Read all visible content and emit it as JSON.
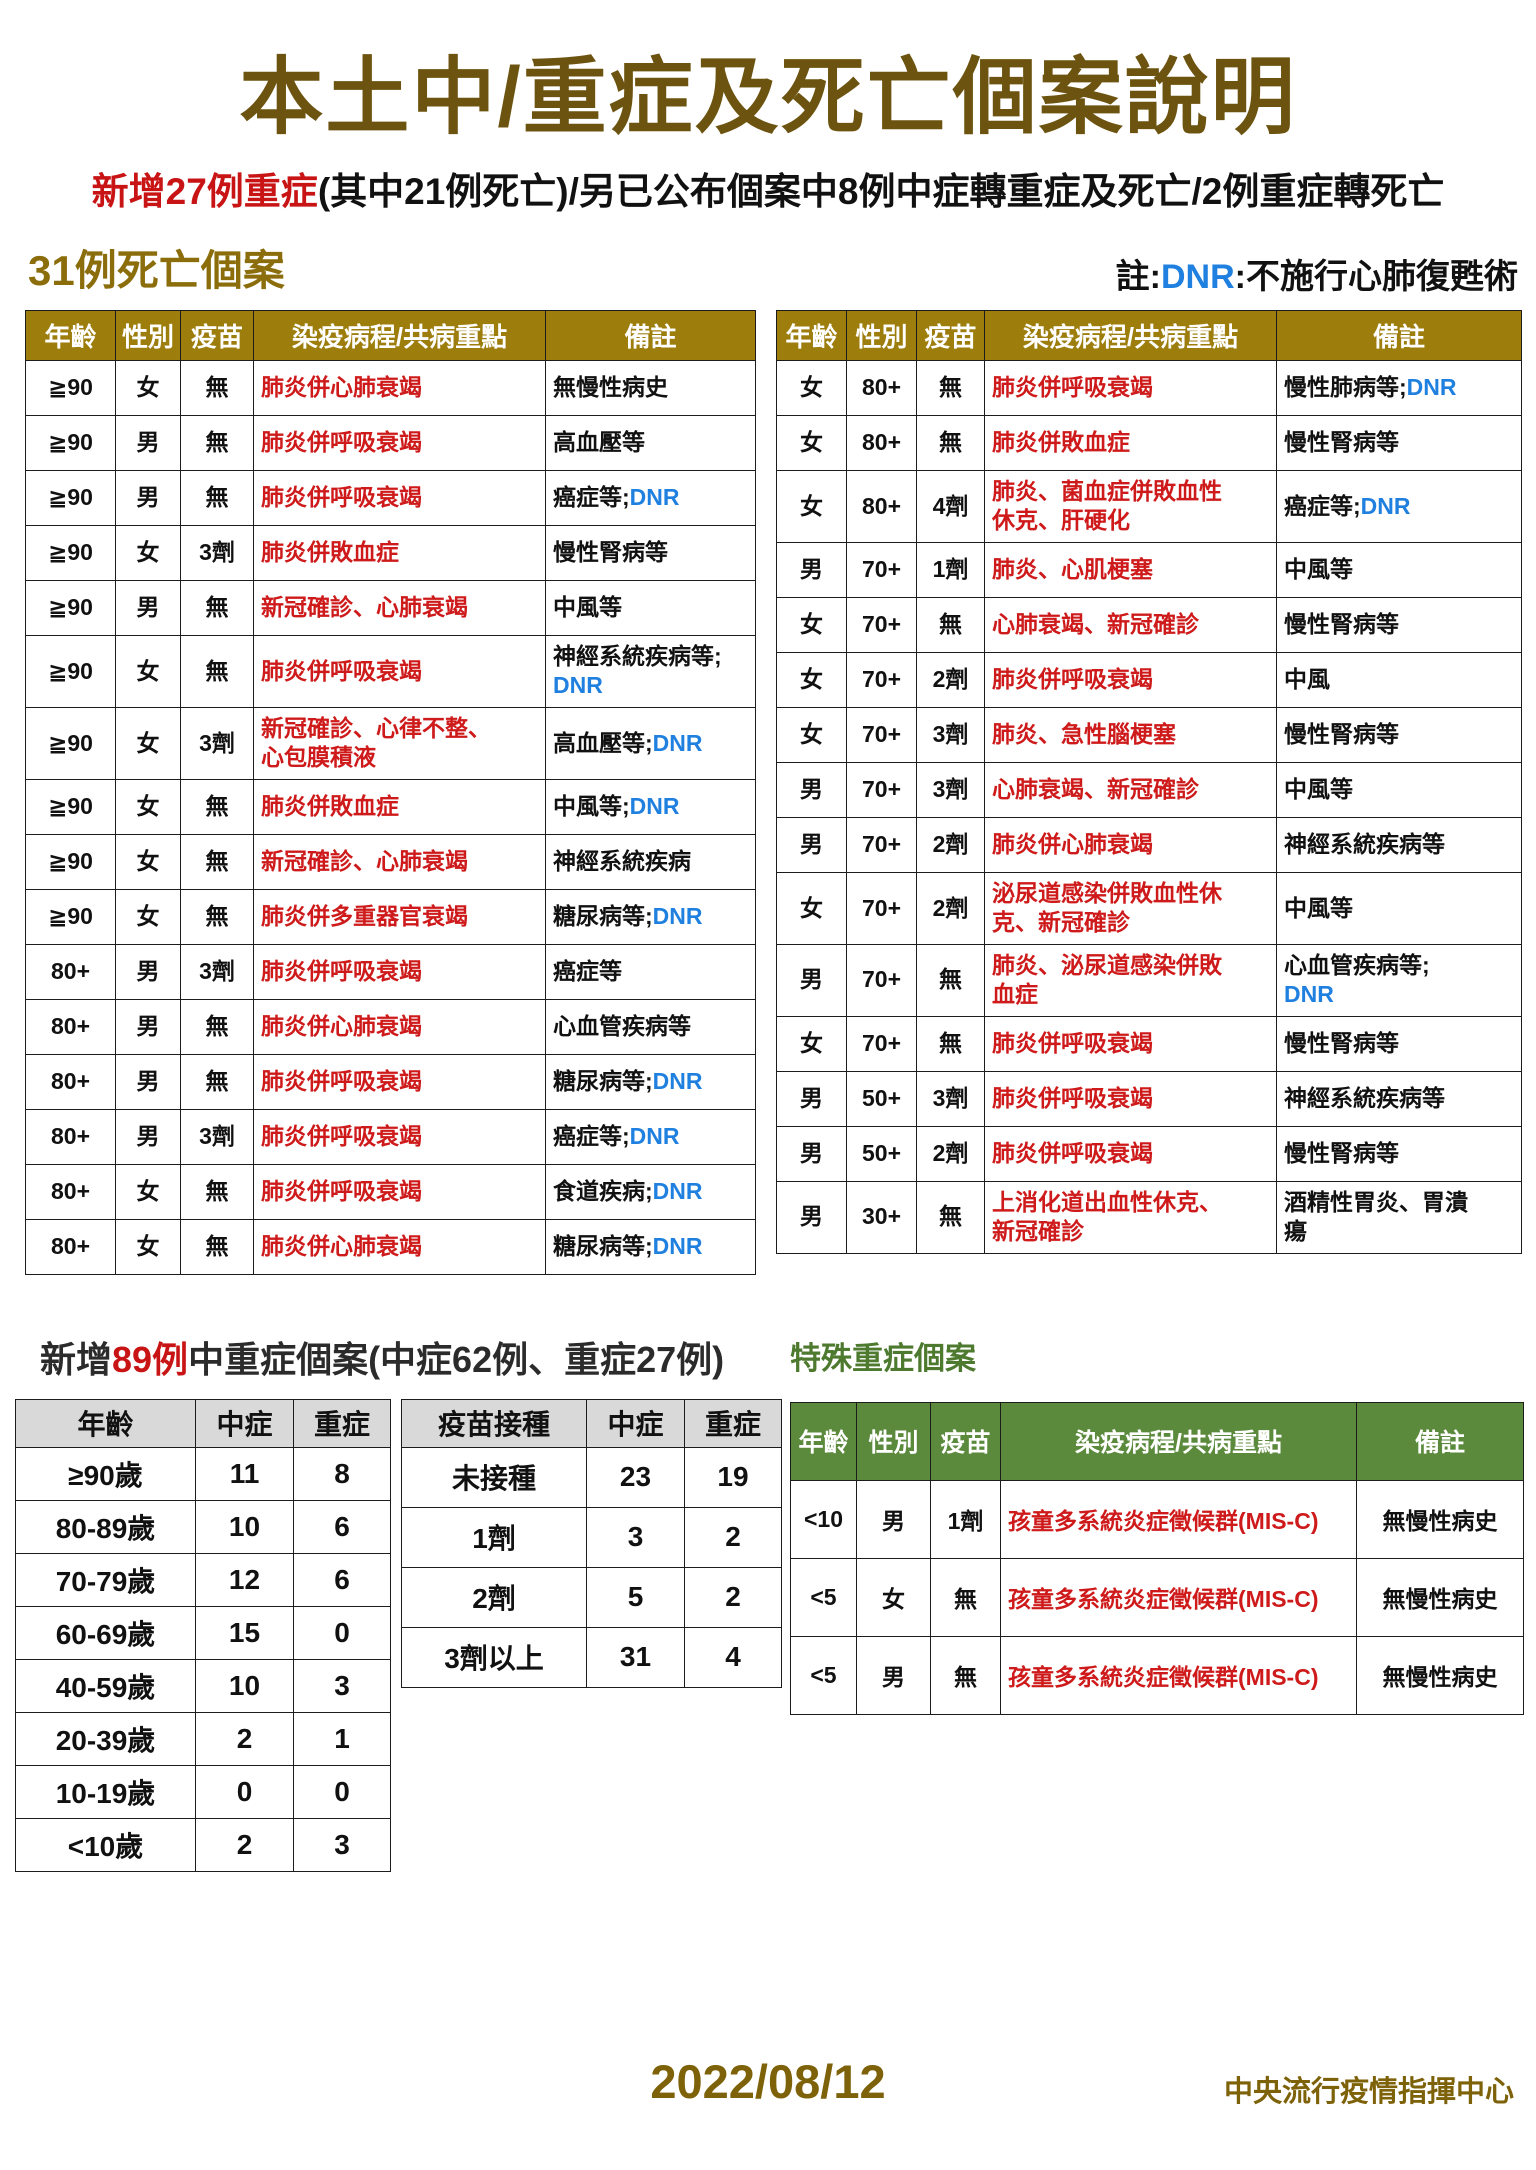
{
  "page": {
    "title": "本土中/重症及死亡個案說明",
    "subtitle": {
      "red": "新增27例重症",
      "rest": "(其中21例死亡)/另已公布個案中8例中症轉重症及死亡/2例重症轉死亡"
    },
    "footer": {
      "date": "2022/08/12",
      "org": "中央流行疫情指揮中心"
    }
  },
  "death_section": {
    "heading": "31例死亡個案",
    "note": {
      "prefix": "註:",
      "dnr": "DNR",
      "suffix": ":不施行心肺復甦術"
    }
  },
  "death_headers": [
    "年齡",
    "性別",
    "疫苗",
    "染疫病程/共病重點",
    "備註"
  ],
  "death_left_rows": [
    [
      [
        [
          "≧90",
          ""
        ]
      ],
      [
        [
          "女",
          ""
        ]
      ],
      [
        [
          "無",
          ""
        ]
      ],
      [
        [
          "肺炎併心肺衰竭",
          "red"
        ]
      ],
      [
        [
          "無慢性病史",
          ""
        ]
      ]
    ],
    [
      [
        [
          "≧90",
          ""
        ]
      ],
      [
        [
          "男",
          ""
        ]
      ],
      [
        [
          "無",
          ""
        ]
      ],
      [
        [
          "肺炎併呼吸衰竭",
          "red"
        ]
      ],
      [
        [
          "高血壓等",
          ""
        ]
      ]
    ],
    [
      [
        [
          "≧90",
          ""
        ]
      ],
      [
        [
          "男",
          ""
        ]
      ],
      [
        [
          "無",
          ""
        ]
      ],
      [
        [
          "肺炎併呼吸衰竭",
          "red"
        ]
      ],
      [
        [
          "癌症等;",
          ""
        ],
        [
          "DNR",
          "blue"
        ]
      ]
    ],
    [
      [
        [
          "≧90",
          ""
        ]
      ],
      [
        [
          "女",
          ""
        ]
      ],
      [
        [
          "3劑",
          ""
        ]
      ],
      [
        [
          "肺炎併敗血症",
          "red"
        ]
      ],
      [
        [
          "慢性腎病等",
          ""
        ]
      ]
    ],
    [
      [
        [
          "≧90",
          ""
        ]
      ],
      [
        [
          "男",
          ""
        ]
      ],
      [
        [
          "無",
          ""
        ]
      ],
      [
        [
          "新冠確診、心肺衰竭",
          "red"
        ]
      ],
      [
        [
          "中風等",
          ""
        ]
      ]
    ],
    [
      [
        [
          "≧90",
          ""
        ]
      ],
      [
        [
          "女",
          ""
        ]
      ],
      [
        [
          "無",
          ""
        ]
      ],
      [
        [
          "肺炎併呼吸衰竭",
          "red"
        ]
      ],
      [
        [
          "神經系統疾病等;\n",
          ""
        ],
        [
          "DNR",
          "blue"
        ]
      ]
    ],
    [
      [
        [
          "≧90",
          ""
        ]
      ],
      [
        [
          "女",
          ""
        ]
      ],
      [
        [
          "3劑",
          ""
        ]
      ],
      [
        [
          "新冠確診、心律不整、\n心包膜積液",
          "red"
        ]
      ],
      [
        [
          "高血壓等;",
          ""
        ],
        [
          "DNR",
          "blue"
        ]
      ]
    ],
    [
      [
        [
          "≧90",
          ""
        ]
      ],
      [
        [
          "女",
          ""
        ]
      ],
      [
        [
          "無",
          ""
        ]
      ],
      [
        [
          "肺炎併敗血症",
          "red"
        ]
      ],
      [
        [
          "中風等;",
          ""
        ],
        [
          "DNR",
          "blue"
        ]
      ]
    ],
    [
      [
        [
          "≧90",
          ""
        ]
      ],
      [
        [
          "女",
          ""
        ]
      ],
      [
        [
          "無",
          ""
        ]
      ],
      [
        [
          "新冠確診、心肺衰竭",
          "red"
        ]
      ],
      [
        [
          "神經系統疾病",
          ""
        ]
      ]
    ],
    [
      [
        [
          "≧90",
          ""
        ]
      ],
      [
        [
          "女",
          ""
        ]
      ],
      [
        [
          "無",
          ""
        ]
      ],
      [
        [
          "肺炎併多重器官衰竭",
          "red"
        ]
      ],
      [
        [
          "糖尿病等;",
          ""
        ],
        [
          "DNR",
          "blue"
        ]
      ]
    ],
    [
      [
        [
          "80+",
          ""
        ]
      ],
      [
        [
          "男",
          ""
        ]
      ],
      [
        [
          "3劑",
          ""
        ]
      ],
      [
        [
          "肺炎併呼吸衰竭",
          "red"
        ]
      ],
      [
        [
          "癌症等",
          ""
        ]
      ]
    ],
    [
      [
        [
          "80+",
          ""
        ]
      ],
      [
        [
          "男",
          ""
        ]
      ],
      [
        [
          "無",
          ""
        ]
      ],
      [
        [
          "肺炎併心肺衰竭",
          "red"
        ]
      ],
      [
        [
          "心血管疾病等",
          ""
        ]
      ]
    ],
    [
      [
        [
          "80+",
          ""
        ]
      ],
      [
        [
          "男",
          ""
        ]
      ],
      [
        [
          "無",
          ""
        ]
      ],
      [
        [
          "肺炎併呼吸衰竭",
          "red"
        ]
      ],
      [
        [
          "糖尿病等;",
          ""
        ],
        [
          "DNR",
          "blue"
        ]
      ]
    ],
    [
      [
        [
          "80+",
          ""
        ]
      ],
      [
        [
          "男",
          ""
        ]
      ],
      [
        [
          "3劑",
          ""
        ]
      ],
      [
        [
          "肺炎併呼吸衰竭",
          "red"
        ]
      ],
      [
        [
          "癌症等;",
          ""
        ],
        [
          "DNR",
          "blue"
        ]
      ]
    ],
    [
      [
        [
          "80+",
          ""
        ]
      ],
      [
        [
          "女",
          ""
        ]
      ],
      [
        [
          "無",
          ""
        ]
      ],
      [
        [
          "肺炎併呼吸衰竭",
          "red"
        ]
      ],
      [
        [
          "食道疾病;",
          ""
        ],
        [
          "DNR",
          "blue"
        ]
      ]
    ],
    [
      [
        [
          "80+",
          ""
        ]
      ],
      [
        [
          "女",
          ""
        ]
      ],
      [
        [
          "無",
          ""
        ]
      ],
      [
        [
          "肺炎併心肺衰竭",
          "red"
        ]
      ],
      [
        [
          "糖尿病等;",
          ""
        ],
        [
          "DNR",
          "blue"
        ]
      ]
    ]
  ],
  "death_right_rows": [
    [
      [
        [
          "女",
          ""
        ]
      ],
      [
        [
          "80+",
          ""
        ]
      ],
      [
        [
          "無",
          ""
        ]
      ],
      [
        [
          "肺炎併呼吸衰竭",
          "red"
        ]
      ],
      [
        [
          "慢性肺病等;",
          ""
        ],
        [
          "DNR",
          "blue"
        ]
      ]
    ],
    [
      [
        [
          "女",
          ""
        ]
      ],
      [
        [
          "80+",
          ""
        ]
      ],
      [
        [
          "無",
          ""
        ]
      ],
      [
        [
          "肺炎併敗血症",
          "red"
        ]
      ],
      [
        [
          "慢性腎病等",
          ""
        ]
      ]
    ],
    [
      [
        [
          "女",
          ""
        ]
      ],
      [
        [
          "80+",
          ""
        ]
      ],
      [
        [
          "4劑",
          ""
        ]
      ],
      [
        [
          "肺炎、菌血症併敗血性\n休克、肝硬化",
          "red"
        ]
      ],
      [
        [
          "癌症等;",
          ""
        ],
        [
          "DNR",
          "blue"
        ]
      ]
    ],
    [
      [
        [
          "男",
          ""
        ]
      ],
      [
        [
          "70+",
          ""
        ]
      ],
      [
        [
          "1劑",
          ""
        ]
      ],
      [
        [
          "肺炎、心肌梗塞",
          "red"
        ]
      ],
      [
        [
          "中風等",
          ""
        ]
      ]
    ],
    [
      [
        [
          "女",
          ""
        ]
      ],
      [
        [
          "70+",
          ""
        ]
      ],
      [
        [
          "無",
          ""
        ]
      ],
      [
        [
          "心肺衰竭、新冠確診",
          "red"
        ]
      ],
      [
        [
          "慢性腎病等",
          ""
        ]
      ]
    ],
    [
      [
        [
          "女",
          ""
        ]
      ],
      [
        [
          "70+",
          ""
        ]
      ],
      [
        [
          "2劑",
          ""
        ]
      ],
      [
        [
          "肺炎併呼吸衰竭",
          "red"
        ]
      ],
      [
        [
          "中風",
          ""
        ]
      ]
    ],
    [
      [
        [
          "女",
          ""
        ]
      ],
      [
        [
          "70+",
          ""
        ]
      ],
      [
        [
          "3劑",
          ""
        ]
      ],
      [
        [
          "肺炎、急性腦梗塞",
          "red"
        ]
      ],
      [
        [
          "慢性腎病等",
          ""
        ]
      ]
    ],
    [
      [
        [
          "男",
          ""
        ]
      ],
      [
        [
          "70+",
          ""
        ]
      ],
      [
        [
          "3劑",
          ""
        ]
      ],
      [
        [
          "心肺衰竭、新冠確診",
          "red"
        ]
      ],
      [
        [
          "中風等",
          ""
        ]
      ]
    ],
    [
      [
        [
          "男",
          ""
        ]
      ],
      [
        [
          "70+",
          ""
        ]
      ],
      [
        [
          "2劑",
          ""
        ]
      ],
      [
        [
          "肺炎併心肺衰竭",
          "red"
        ]
      ],
      [
        [
          "神經系統疾病等",
          ""
        ]
      ]
    ],
    [
      [
        [
          "女",
          ""
        ]
      ],
      [
        [
          "70+",
          ""
        ]
      ],
      [
        [
          "2劑",
          ""
        ]
      ],
      [
        [
          "泌尿道感染併敗血性休\n克、新冠確診",
          "red"
        ]
      ],
      [
        [
          "中風等",
          ""
        ]
      ]
    ],
    [
      [
        [
          "男",
          ""
        ]
      ],
      [
        [
          "70+",
          ""
        ]
      ],
      [
        [
          "無",
          ""
        ]
      ],
      [
        [
          "肺炎、泌尿道感染併敗\n血症",
          "red"
        ]
      ],
      [
        [
          "心血管疾病等;\n",
          ""
        ],
        [
          "DNR",
          "blue"
        ]
      ]
    ],
    [
      [
        [
          "女",
          ""
        ]
      ],
      [
        [
          "70+",
          ""
        ]
      ],
      [
        [
          "無",
          ""
        ]
      ],
      [
        [
          "肺炎併呼吸衰竭",
          "red"
        ]
      ],
      [
        [
          "慢性腎病等",
          ""
        ]
      ]
    ],
    [
      [
        [
          "男",
          ""
        ]
      ],
      [
        [
          "50+",
          ""
        ]
      ],
      [
        [
          "3劑",
          ""
        ]
      ],
      [
        [
          "肺炎併呼吸衰竭",
          "red"
        ]
      ],
      [
        [
          "神經系統疾病等",
          ""
        ]
      ]
    ],
    [
      [
        [
          "男",
          ""
        ]
      ],
      [
        [
          "50+",
          ""
        ]
      ],
      [
        [
          "2劑",
          ""
        ]
      ],
      [
        [
          "肺炎併呼吸衰竭",
          "red"
        ]
      ],
      [
        [
          "慢性腎病等",
          ""
        ]
      ]
    ],
    [
      [
        [
          "男",
          ""
        ]
      ],
      [
        [
          "30+",
          ""
        ]
      ],
      [
        [
          "無",
          ""
        ]
      ],
      [
        [
          "上消化道出血性休克、\n新冠確診",
          "red"
        ]
      ],
      [
        [
          "酒精性胃炎、胃潰\n瘍",
          ""
        ]
      ]
    ]
  ],
  "moderate_section": {
    "heading_prefix": "新增",
    "heading_red": "89例",
    "heading_rest": "中重症個案(中症62例、重症27例)",
    "special_heading": "特殊重症個案"
  },
  "age_table": {
    "headers": [
      "年齡",
      "中症",
      "重症"
    ],
    "rows": [
      [
        "≥90歲",
        "11",
        "8"
      ],
      [
        "80-89歲",
        "10",
        "6"
      ],
      [
        "70-79歲",
        "12",
        "6"
      ],
      [
        "60-69歲",
        "15",
        "0"
      ],
      [
        "40-59歲",
        "10",
        "3"
      ],
      [
        "20-39歲",
        "2",
        "1"
      ],
      [
        "10-19歲",
        "0",
        "0"
      ],
      [
        "<10歲",
        "2",
        "3"
      ]
    ]
  },
  "vaccine_table": {
    "headers": [
      "疫苗接種",
      "中症",
      "重症"
    ],
    "rows": [
      [
        "未接種",
        "23",
        "19"
      ],
      [
        "1劑",
        "3",
        "2"
      ],
      [
        "2劑",
        "5",
        "2"
      ],
      [
        "3劑以上",
        "31",
        "4"
      ]
    ]
  },
  "special_table": {
    "headers": [
      "年齡",
      "性別",
      "疫苗",
      "染疫病程/共病重點",
      "備註"
    ],
    "rows": [
      [
        [
          [
            "<10",
            ""
          ]
        ],
        [
          [
            "男",
            ""
          ]
        ],
        [
          [
            "1劑",
            ""
          ]
        ],
        [
          [
            "孩童多系統炎症徵候群(MIS-C)",
            "red"
          ]
        ],
        [
          [
            "無慢性病史",
            ""
          ]
        ]
      ],
      [
        [
          [
            "<5",
            ""
          ]
        ],
        [
          [
            "女",
            ""
          ]
        ],
        [
          [
            "無",
            ""
          ]
        ],
        [
          [
            "孩童多系統炎症徵候群(MIS-C)",
            "red"
          ]
        ],
        [
          [
            "無慢性病史",
            ""
          ]
        ]
      ],
      [
        [
          [
            "<5",
            ""
          ]
        ],
        [
          [
            "男",
            ""
          ]
        ],
        [
          [
            "無",
            ""
          ]
        ],
        [
          [
            "孩童多系統炎症徵候群(MIS-C)",
            "red"
          ]
        ],
        [
          [
            "無慢性病史",
            ""
          ]
        ]
      ]
    ]
  }
}
